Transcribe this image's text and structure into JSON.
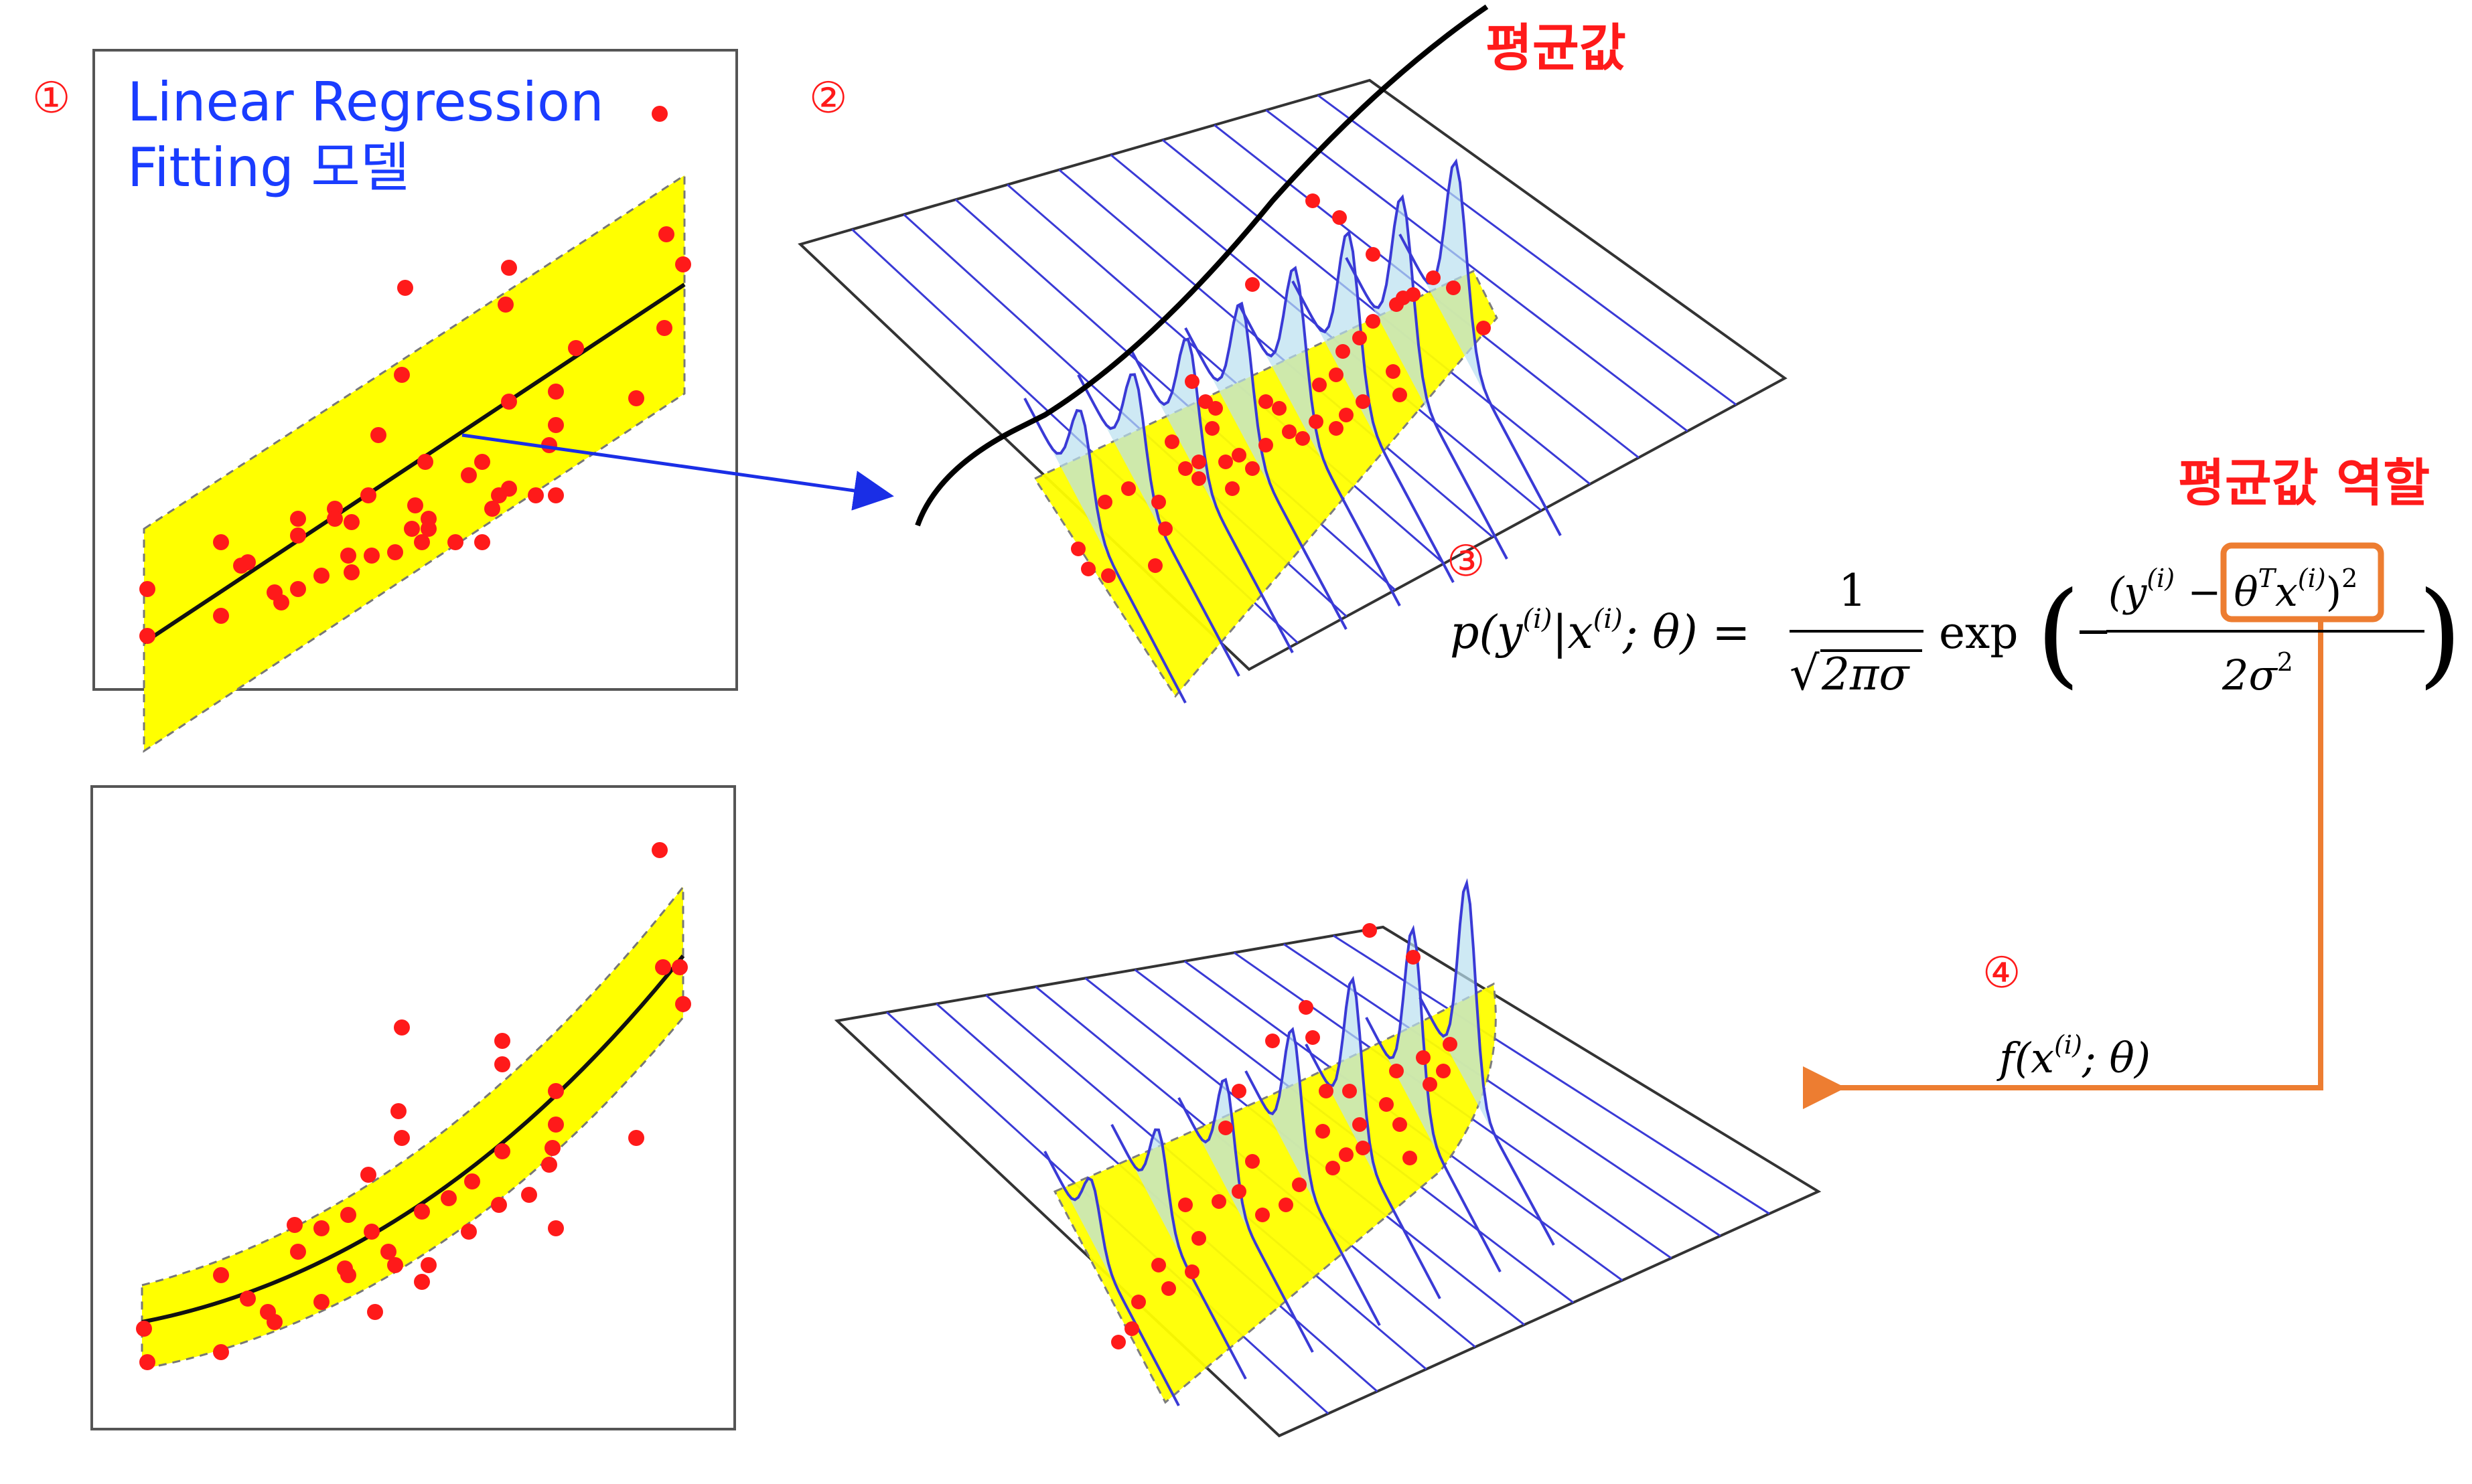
{
  "markers": {
    "m1": "①",
    "m2": "②",
    "m3": "③",
    "m4": "④"
  },
  "panel1": {
    "title_line1": "Linear Regression",
    "title_line2": "Fitting 모델"
  },
  "labels": {
    "mean": "평균값",
    "mean_role": "평균값 역할"
  },
  "formula": {
    "lhs": "p(y",
    "sup_i": "(i)",
    "cond": "|x",
    "semi_theta": "; θ) =",
    "numerator_one": "1",
    "sqrt_body": "2πσ",
    "exp": "exp",
    "minus": "−",
    "num_open": "(y",
    "num_minus": " − ",
    "theta": "θ",
    "sup_T": "T",
    "x": "x",
    "num_close": ")",
    "sup_2": "2",
    "den": "2σ",
    "paren_left": "(",
    "paren_right": ")"
  },
  "mapping": {
    "f_open": "f(x",
    "sup_i": "(i)",
    "f_close": "; θ)"
  },
  "colors": {
    "red": "#ff1a1a",
    "blue_text": "#1a3cff",
    "yellow": "#ffff00",
    "arrow_blue": "#1a2ee6",
    "orange": "#ed7d31",
    "curve_blue": "#3a3ad6",
    "gauss_fill": "#b9dff0"
  }
}
